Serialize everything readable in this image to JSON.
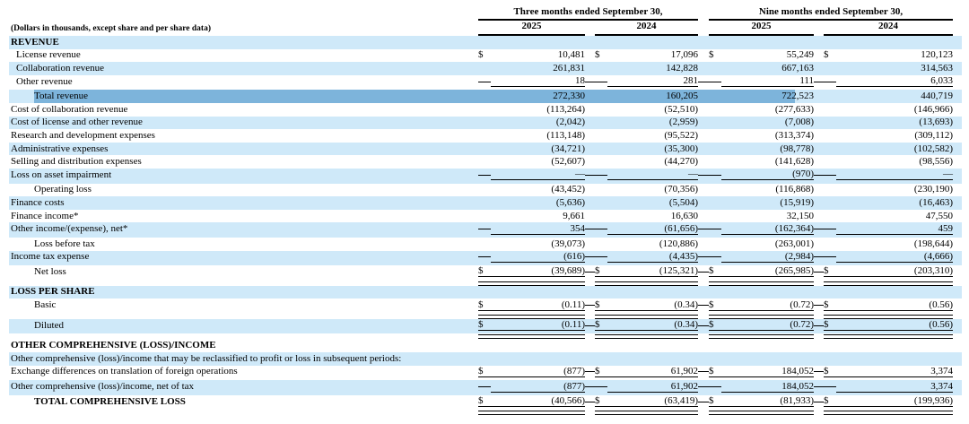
{
  "note": "(Dollars in thousands, except share and per share data)",
  "currency_symbol": "$",
  "header": {
    "groups": [
      {
        "title": "Three months ended September 30,",
        "years": [
          "2025",
          "2024"
        ]
      },
      {
        "title": "Nine months ended September 30,",
        "years": [
          "2025",
          "2024"
        ]
      }
    ]
  },
  "colors": {
    "row_highlight": "#cfe9f9",
    "selection_highlight": "#7db4db",
    "text": "#000000",
    "border": "#000000",
    "background": "#ffffff"
  },
  "selection": {
    "row": "Total revenue",
    "description": "text selection highlight from 'Total revenue' label through part of the nine-month 2025 value"
  },
  "rows": [
    {
      "label": "REVENUE",
      "indent": 0,
      "bold": true,
      "bg": "blue",
      "values": null
    },
    {
      "label": "License revenue",
      "indent": 1,
      "bg": "white",
      "dollar": true,
      "values": [
        "10,481",
        "17,096",
        "55,249",
        "120,123"
      ]
    },
    {
      "label": "Collaboration revenue",
      "indent": 1,
      "bg": "blue",
      "values": [
        "261,831",
        "142,828",
        "667,163",
        "314,563"
      ]
    },
    {
      "label": "Other revenue",
      "indent": 1,
      "bg": "white",
      "underline": true,
      "values": [
        "18",
        "281",
        "111",
        "6,033"
      ]
    },
    {
      "label": "Total revenue",
      "indent": 2,
      "bg": "selected",
      "values": [
        "272,330",
        "160,205",
        "722,523",
        "440,719"
      ]
    },
    {
      "label": "Cost of collaboration revenue",
      "indent": 0,
      "bg": "white",
      "values": [
        "(113,264)",
        "(52,510)",
        "(277,633)",
        "(146,966)"
      ]
    },
    {
      "label": "Cost of license and other revenue",
      "indent": 0,
      "bg": "blue",
      "values": [
        "(2,042)",
        "(2,959)",
        "(7,008)",
        "(13,693)"
      ]
    },
    {
      "label": "Research and development expenses",
      "indent": 0,
      "bg": "white",
      "values": [
        "(113,148)",
        "(95,522)",
        "(313,374)",
        "(309,112)"
      ]
    },
    {
      "label": "Administrative expenses",
      "indent": 0,
      "bg": "blue",
      "values": [
        "(34,721)",
        "(35,300)",
        "(98,778)",
        "(102,582)"
      ]
    },
    {
      "label": "Selling and distribution expenses",
      "indent": 0,
      "bg": "white",
      "values": [
        "(52,607)",
        "(44,270)",
        "(141,628)",
        "(98,556)"
      ]
    },
    {
      "label": "Loss on asset impairment",
      "indent": 0,
      "bg": "blue",
      "underline": true,
      "values": [
        "—",
        "—",
        "(970)",
        "—"
      ]
    },
    {
      "label": "Operating loss",
      "indent": 2,
      "bg": "white",
      "values": [
        "(43,452)",
        "(70,356)",
        "(116,868)",
        "(230,190)"
      ]
    },
    {
      "label": "Finance costs",
      "indent": 0,
      "bg": "blue",
      "values": [
        "(5,636)",
        "(5,504)",
        "(15,919)",
        "(16,463)"
      ]
    },
    {
      "label": "Finance income*",
      "indent": 0,
      "bg": "white",
      "values": [
        "9,661",
        "16,630",
        "32,150",
        "47,550"
      ]
    },
    {
      "label": "Other income/(expense), net*",
      "indent": 0,
      "bg": "blue",
      "underline": true,
      "values": [
        "354",
        "(61,656)",
        "(162,364)",
        "459"
      ]
    },
    {
      "label": "Loss before tax",
      "indent": 2,
      "bg": "white",
      "values": [
        "(39,073)",
        "(120,886)",
        "(263,001)",
        "(198,644)"
      ]
    },
    {
      "label": "Income tax expense",
      "indent": 0,
      "bg": "blue",
      "underline": true,
      "values": [
        "(616)",
        "(4,435)",
        "(2,984)",
        "(4,666)"
      ]
    },
    {
      "label": "Net loss",
      "indent": 2,
      "bg": "white",
      "dollar": true,
      "underline": true,
      "double_rule": true,
      "values": [
        "(39,689)",
        "(125,321)",
        "(265,985)",
        "(203,310)"
      ]
    },
    {
      "label": "LOSS PER SHARE",
      "indent": 0,
      "bold": true,
      "bg": "blue",
      "values": null
    },
    {
      "label": "Basic",
      "indent": 2,
      "bg": "white",
      "dollar": true,
      "underline": true,
      "double_rule": true,
      "values": [
        "(0.11)",
        "(0.34)",
        "(0.72)",
        "(0.56)"
      ]
    },
    {
      "label": "Diluted",
      "indent": 2,
      "bg": "blue",
      "dollar": true,
      "underline": true,
      "double_rule": true,
      "values": [
        "(0.11)",
        "(0.34)",
        "(0.72)",
        "(0.56)"
      ]
    },
    {
      "label": "OTHER COMPREHENSIVE (LOSS)/INCOME",
      "indent": 0,
      "bold": true,
      "bg": "white",
      "values": null
    },
    {
      "label": "Other comprehensive (loss)/income that may be reclassified to profit or loss in subsequent periods:",
      "indent": 0,
      "bg": "blue",
      "values": null
    },
    {
      "label": "Exchange differences on translation of foreign operations",
      "indent": 0,
      "bg": "white",
      "dollar": true,
      "underline": true,
      "values": [
        "(877)",
        "61,902",
        "184,052",
        "3,374"
      ]
    },
    {
      "label": "Other comprehensive (loss)/income, net of tax",
      "indent": 0,
      "bg": "blue",
      "underline": true,
      "values": [
        "(877)",
        "61,902",
        "184,052",
        "3,374"
      ]
    },
    {
      "label": "TOTAL COMPREHENSIVE LOSS",
      "indent": 2,
      "bold": true,
      "bg": "white",
      "dollar": true,
      "underline": true,
      "double_rule": true,
      "values": [
        "(40,566)",
        "(63,419)",
        "(81,933)",
        "(199,936)"
      ]
    }
  ]
}
